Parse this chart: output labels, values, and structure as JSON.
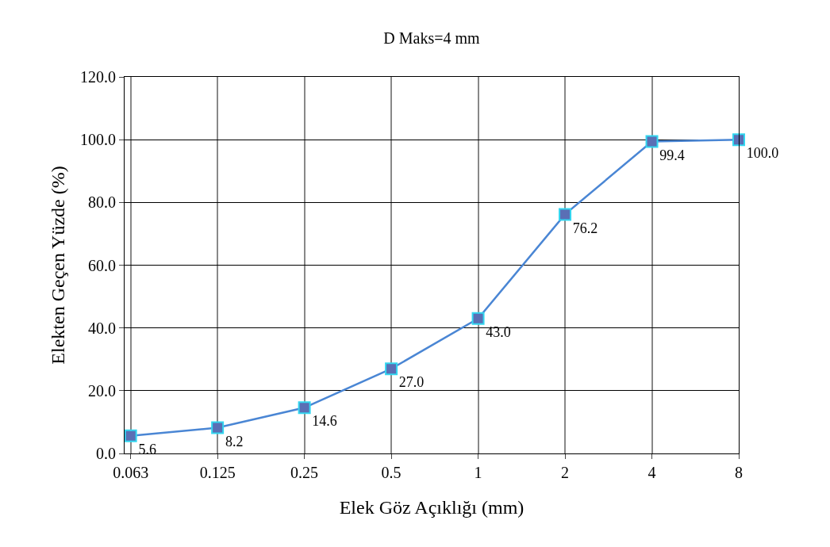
{
  "chart_data": {
    "type": "line",
    "title": "D Maks=4 mm",
    "xlabel": "Elek Göz Açıklığı (mm)",
    "ylabel": "Elekten Geçen Yüzde (%)",
    "categories": [
      "0.063",
      "0.125",
      "0.25",
      "0.5",
      "1",
      "2",
      "4",
      "8"
    ],
    "series": [
      {
        "color": "#4a86d4",
        "values": [
          5.6,
          8.2,
          14.6,
          27.0,
          43.0,
          76.2,
          99.4,
          100.0
        ],
        "value_labels": [
          "5.6",
          "8.2",
          "14.6",
          "27.0",
          "43.0",
          "76.2",
          "99.4",
          "100.0"
        ]
      }
    ],
    "ylim": [
      0,
      120
    ],
    "yticks": [
      {
        "value": 0,
        "label": "0.0"
      },
      {
        "value": 20,
        "label": "20.0"
      },
      {
        "value": 40,
        "label": "40.0"
      },
      {
        "value": 60,
        "label": "60.0"
      },
      {
        "value": 80,
        "label": "80.0"
      },
      {
        "value": 100,
        "label": "100.0"
      },
      {
        "value": 120,
        "label": "120.0"
      }
    ],
    "grid": true,
    "marker": "square",
    "line_style": "solid"
  }
}
